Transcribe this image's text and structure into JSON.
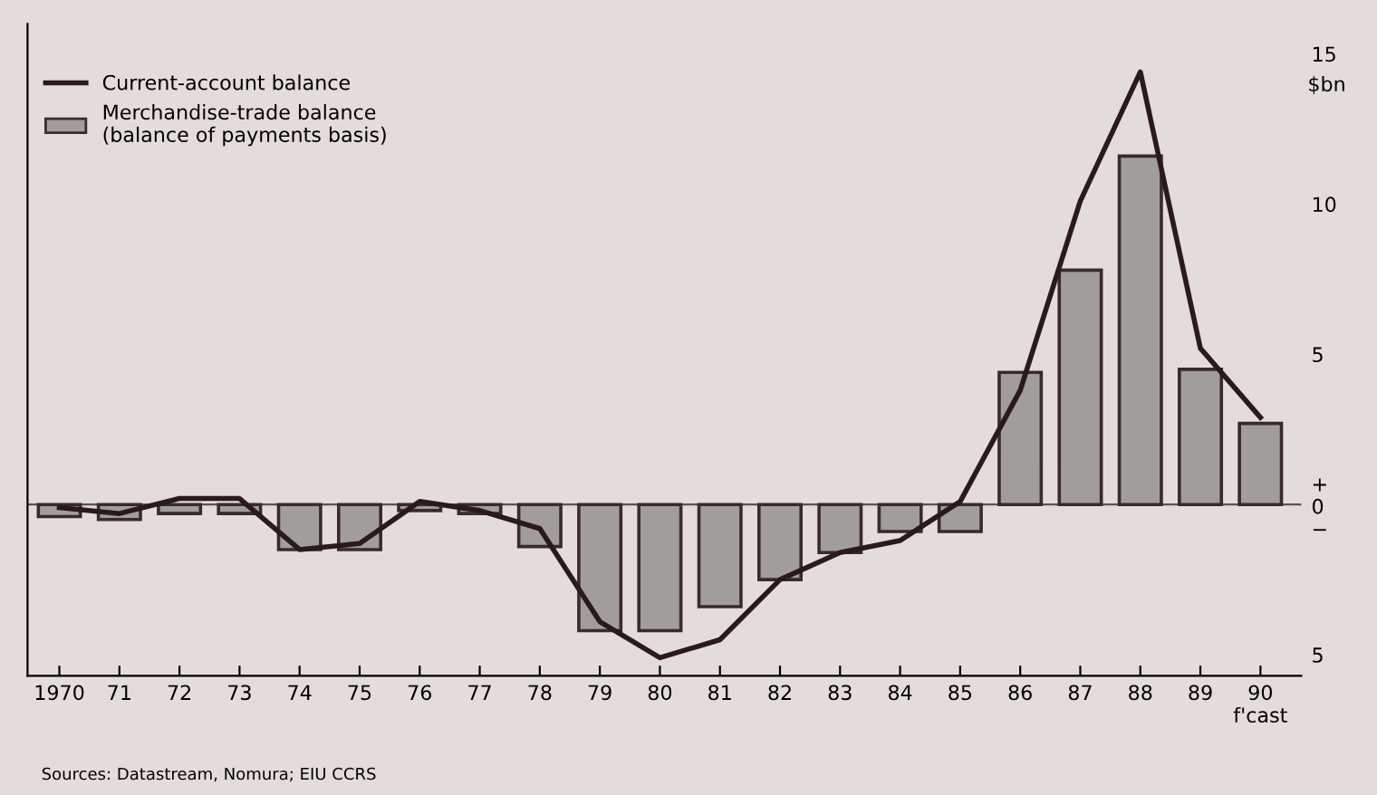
{
  "chart_data": {
    "type": "bar",
    "ylabel": "$bn",
    "categories": [
      "1970",
      "71",
      "72",
      "73",
      "74",
      "75",
      "76",
      "77",
      "78",
      "79",
      "80",
      "81",
      "82",
      "83",
      "84",
      "85",
      "86",
      "87",
      "88",
      "89",
      "90\nf'cast"
    ],
    "series": [
      {
        "name": "Merchandise-trade balance\n(balance of payments basis)",
        "color": "#a19d9b",
        "values": [
          -0.4,
          -0.5,
          -0.3,
          -0.3,
          -1.5,
          -1.5,
          -0.2,
          -0.3,
          -1.4,
          -4.2,
          -4.2,
          -3.4,
          -2.5,
          -1.6,
          -0.9,
          -0.9,
          4.4,
          7.8,
          11.6,
          4.5,
          2.7
        ]
      },
      {
        "name": "Current-account balance",
        "type": "line",
        "color": "#2a1a1a",
        "values": [
          -0.1,
          -0.3,
          0.2,
          0.2,
          -1.5,
          -1.3,
          0.1,
          -0.2,
          -0.8,
          -3.9,
          -5.1,
          -4.5,
          -2.5,
          -1.6,
          -1.2,
          0.1,
          3.8,
          10.1,
          14.4,
          5.2,
          2.9
        ]
      }
    ],
    "ylim": [
      -5.7,
      16
    ],
    "yticks": [
      {
        "value": -5,
        "label": "5"
      },
      {
        "value": 0,
        "label": "+\n0\n−"
      },
      5,
      10,
      15
    ],
    "ref_lines": [
      {
        "axis": "y",
        "value": 0,
        "color": "#555555"
      }
    ],
    "grid": false,
    "legend": "top left",
    "marker": "none",
    "line_style": "solid",
    "annotations": [
      "Sources: Datastream, Nomura; EIU CCRS"
    ]
  }
}
